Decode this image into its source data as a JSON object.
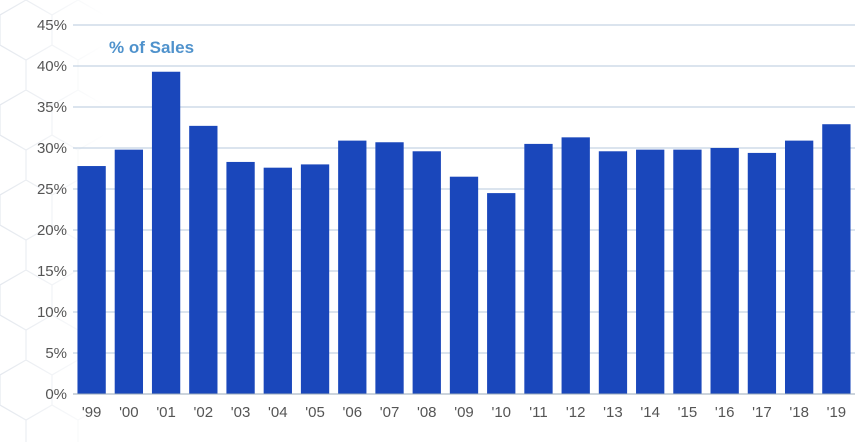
{
  "chart_data": {
    "type": "bar",
    "title": "% of Sales",
    "xlabel": "",
    "ylabel": "",
    "categories": [
      "'99",
      "'00",
      "'01",
      "'02",
      "'03",
      "'04",
      "'05",
      "'06",
      "'07",
      "'08",
      "'09",
      "'10",
      "'11",
      "'12",
      "'13",
      "'14",
      "'15",
      "'16",
      "'17",
      "'18",
      "'19"
    ],
    "values": [
      27.8,
      29.8,
      39.3,
      32.7,
      28.3,
      27.6,
      28.0,
      30.9,
      30.7,
      29.6,
      26.5,
      24.5,
      30.5,
      31.3,
      29.6,
      29.8,
      29.8,
      30.0,
      29.4,
      30.9,
      32.9
    ],
    "ylim": [
      0,
      45
    ],
    "yticks": [
      "0%",
      "5%",
      "10%",
      "15%",
      "20%",
      "25%",
      "30%",
      "35%",
      "40%",
      "45%"
    ],
    "grid": true,
    "legend": "none",
    "colors": {
      "bar": "#1a47bb",
      "grid": "#b7c9dc",
      "axis": "#9aaab8",
      "title": "#4f92cc",
      "tick_text": "#555555"
    }
  }
}
